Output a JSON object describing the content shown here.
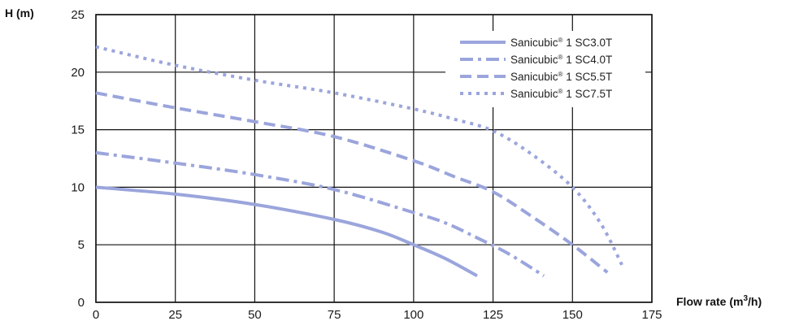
{
  "chart_data": {
    "type": "line",
    "ylabel": "H (m)",
    "xlabel_main": "Flow rate (m",
    "xlabel_sup": "3",
    "xlabel_end": "/h)",
    "xlim": [
      0,
      175
    ],
    "ylim": [
      0,
      25
    ],
    "xticks": [
      0,
      25,
      50,
      75,
      100,
      125,
      150,
      175
    ],
    "xtick_labels": [
      "0",
      "25",
      "50",
      "75",
      "100",
      "125",
      "150",
      "175"
    ],
    "yticks": [
      0,
      5,
      10,
      15,
      20,
      25
    ],
    "ytick_labels": [
      "0",
      "5",
      "10",
      "15",
      "20",
      "25"
    ],
    "grid": true,
    "legend_position": "top-right",
    "series_color": "#9BA5DC",
    "series": [
      {
        "name_main": "Sanicubic",
        "name_sup": "®",
        "name_end": " 1 SC3.0T",
        "style": "solid",
        "x": [
          0,
          25,
          50,
          75,
          90,
          100,
          110,
          120
        ],
        "y": [
          10.0,
          9.4,
          8.5,
          7.2,
          6.1,
          5.0,
          3.8,
          2.3
        ]
      },
      {
        "name_main": "Sanicubic",
        "name_sup": "®",
        "name_end": " 1 SC4.0T",
        "style": "dashdot",
        "x": [
          0,
          25,
          50,
          75,
          100,
          110,
          120,
          130,
          141
        ],
        "y": [
          13.0,
          12.1,
          11.1,
          9.8,
          7.8,
          6.9,
          5.6,
          4.2,
          2.3
        ]
      },
      {
        "name_main": "Sanicubic",
        "name_sup": "®",
        "name_end": " 1 SC5.5T",
        "style": "dashed",
        "x": [
          0,
          25,
          50,
          75,
          100,
          113,
          125,
          137,
          150,
          161
        ],
        "y": [
          18.2,
          16.9,
          15.7,
          14.4,
          12.3,
          10.9,
          9.6,
          7.5,
          5.0,
          2.6
        ]
      },
      {
        "name_main": "Sanicubic",
        "name_sup": "®",
        "name_end": " 1 SC7.5T",
        "style": "dotted",
        "x": [
          0,
          25,
          50,
          75,
          100,
          113,
          125,
          137,
          150,
          159,
          166
        ],
        "y": [
          22.2,
          20.6,
          19.3,
          18.2,
          16.8,
          15.9,
          14.9,
          12.9,
          10.0,
          6.8,
          3.0
        ]
      }
    ]
  }
}
